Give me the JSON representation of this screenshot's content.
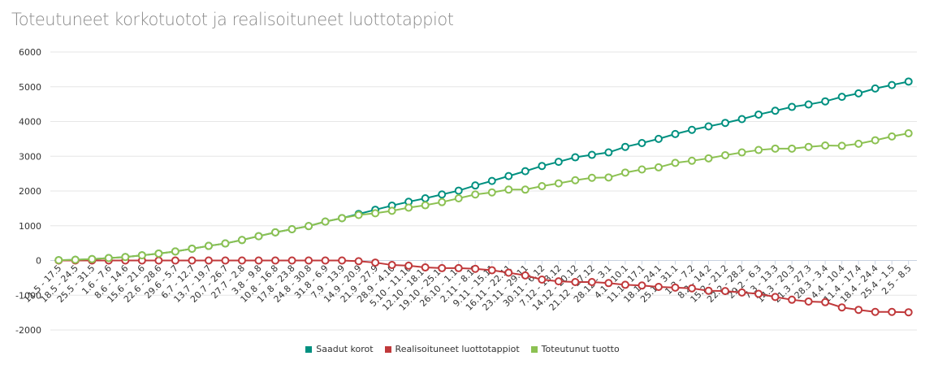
{
  "chart_data": {
    "type": "line",
    "title": "Toteutuneet korkotuotot ja realisoituneet luottotappiot",
    "xlabel": "",
    "ylabel": "",
    "ylim": [
      -2000,
      6000
    ],
    "yticks": [
      -2000,
      -1000,
      0,
      1000,
      2000,
      3000,
      4000,
      5000,
      6000
    ],
    "grid": true,
    "legend_position": "bottom-center",
    "categories": [
      "11.5 - 17.5",
      "18.5 - 24.5",
      "25.5 - 31.5",
      "1.6 - 7.6",
      "8.6 - 14.6",
      "15.6 - 21.6",
      "22.6 - 28.6",
      "29.6 - 5.7",
      "6.7 - 12.7",
      "13.7 - 19.7",
      "20.7 - 26.7",
      "27.7 - 2.8",
      "3.8 - 9.8",
      "10.8 - 16.8",
      "17.8 - 23.8",
      "24.8 - 30.8",
      "31.8 - 6.9",
      "7.9 - 13.9",
      "14.9 - 20.9",
      "21.9 - 27.9",
      "28.9 - 4.10",
      "5.10 - 11.10",
      "12.10 - 18.10",
      "19.10 - 25.10",
      "26.10 - 1.11",
      "2.11 - 8.11",
      "9.11 - 15.11",
      "16.11 - 22.11",
      "23.11 - 29.11",
      "30.11 - 6.12",
      "7.12 - 13.12",
      "14.12 - 20.12",
      "21.12 - 27.12",
      "28.12 - 3.1",
      "4.1 - 10.1",
      "11.1 - 17.1",
      "18.1 - 24.1",
      "25.1 - 31.1",
      "1.2 - 7.2",
      "8.2 - 14.2",
      "15.2 - 21.2",
      "22.2 - 28.2",
      "29.2 - 6.3",
      "7.3 - 13.3",
      "14.3 - 20.3",
      "21.3 - 27.3",
      "28.3 - 3.4",
      "4.4 - 10.4",
      "11.4 - 17.4",
      "18.4 - 24.4",
      "25.4 - 1.5",
      "2.5 - 8.5"
    ],
    "series": [
      {
        "name": "Saadut korot",
        "color": "#009080",
        "values": [
          10,
          20,
          40,
          70,
          100,
          150,
          200,
          260,
          340,
          420,
          490,
          590,
          700,
          810,
          900,
          990,
          1120,
          1220,
          1340,
          1460,
          1580,
          1690,
          1790,
          1900,
          2010,
          2160,
          2290,
          2430,
          2570,
          2720,
          2840,
          2970,
          3040,
          3110,
          3270,
          3380,
          3500,
          3640,
          3760,
          3860,
          3960,
          4070,
          4200,
          4310,
          4420,
          4490,
          4580,
          4710,
          4810,
          4950,
          5050,
          5150
        ]
      },
      {
        "name": "Realisoituneet luottotappiot",
        "color": "#c0393b",
        "values": [
          0,
          0,
          0,
          0,
          0,
          0,
          0,
          0,
          0,
          0,
          0,
          0,
          0,
          0,
          0,
          0,
          0,
          0,
          -20,
          -60,
          -130,
          -150,
          -200,
          -220,
          -220,
          -240,
          -280,
          -350,
          -430,
          -550,
          -600,
          -620,
          -620,
          -650,
          -700,
          -720,
          -760,
          -780,
          -800,
          -870,
          -880,
          -920,
          -960,
          -1050,
          -1130,
          -1180,
          -1200,
          -1350,
          -1420,
          -1480,
          -1480,
          -1490
        ]
      },
      {
        "name": "Toteutunut tuotto",
        "color": "#8cc152",
        "values": [
          10,
          20,
          40,
          70,
          100,
          150,
          200,
          260,
          340,
          420,
          490,
          590,
          700,
          810,
          900,
          990,
          1120,
          1220,
          1310,
          1360,
          1430,
          1520,
          1590,
          1680,
          1790,
          1900,
          1960,
          2040,
          2040,
          2140,
          2220,
          2310,
          2380,
          2390,
          2530,
          2620,
          2680,
          2810,
          2870,
          2940,
          3030,
          3110,
          3180,
          3220,
          3220,
          3270,
          3310,
          3300,
          3360,
          3460,
          3570,
          3660
        ]
      }
    ]
  }
}
